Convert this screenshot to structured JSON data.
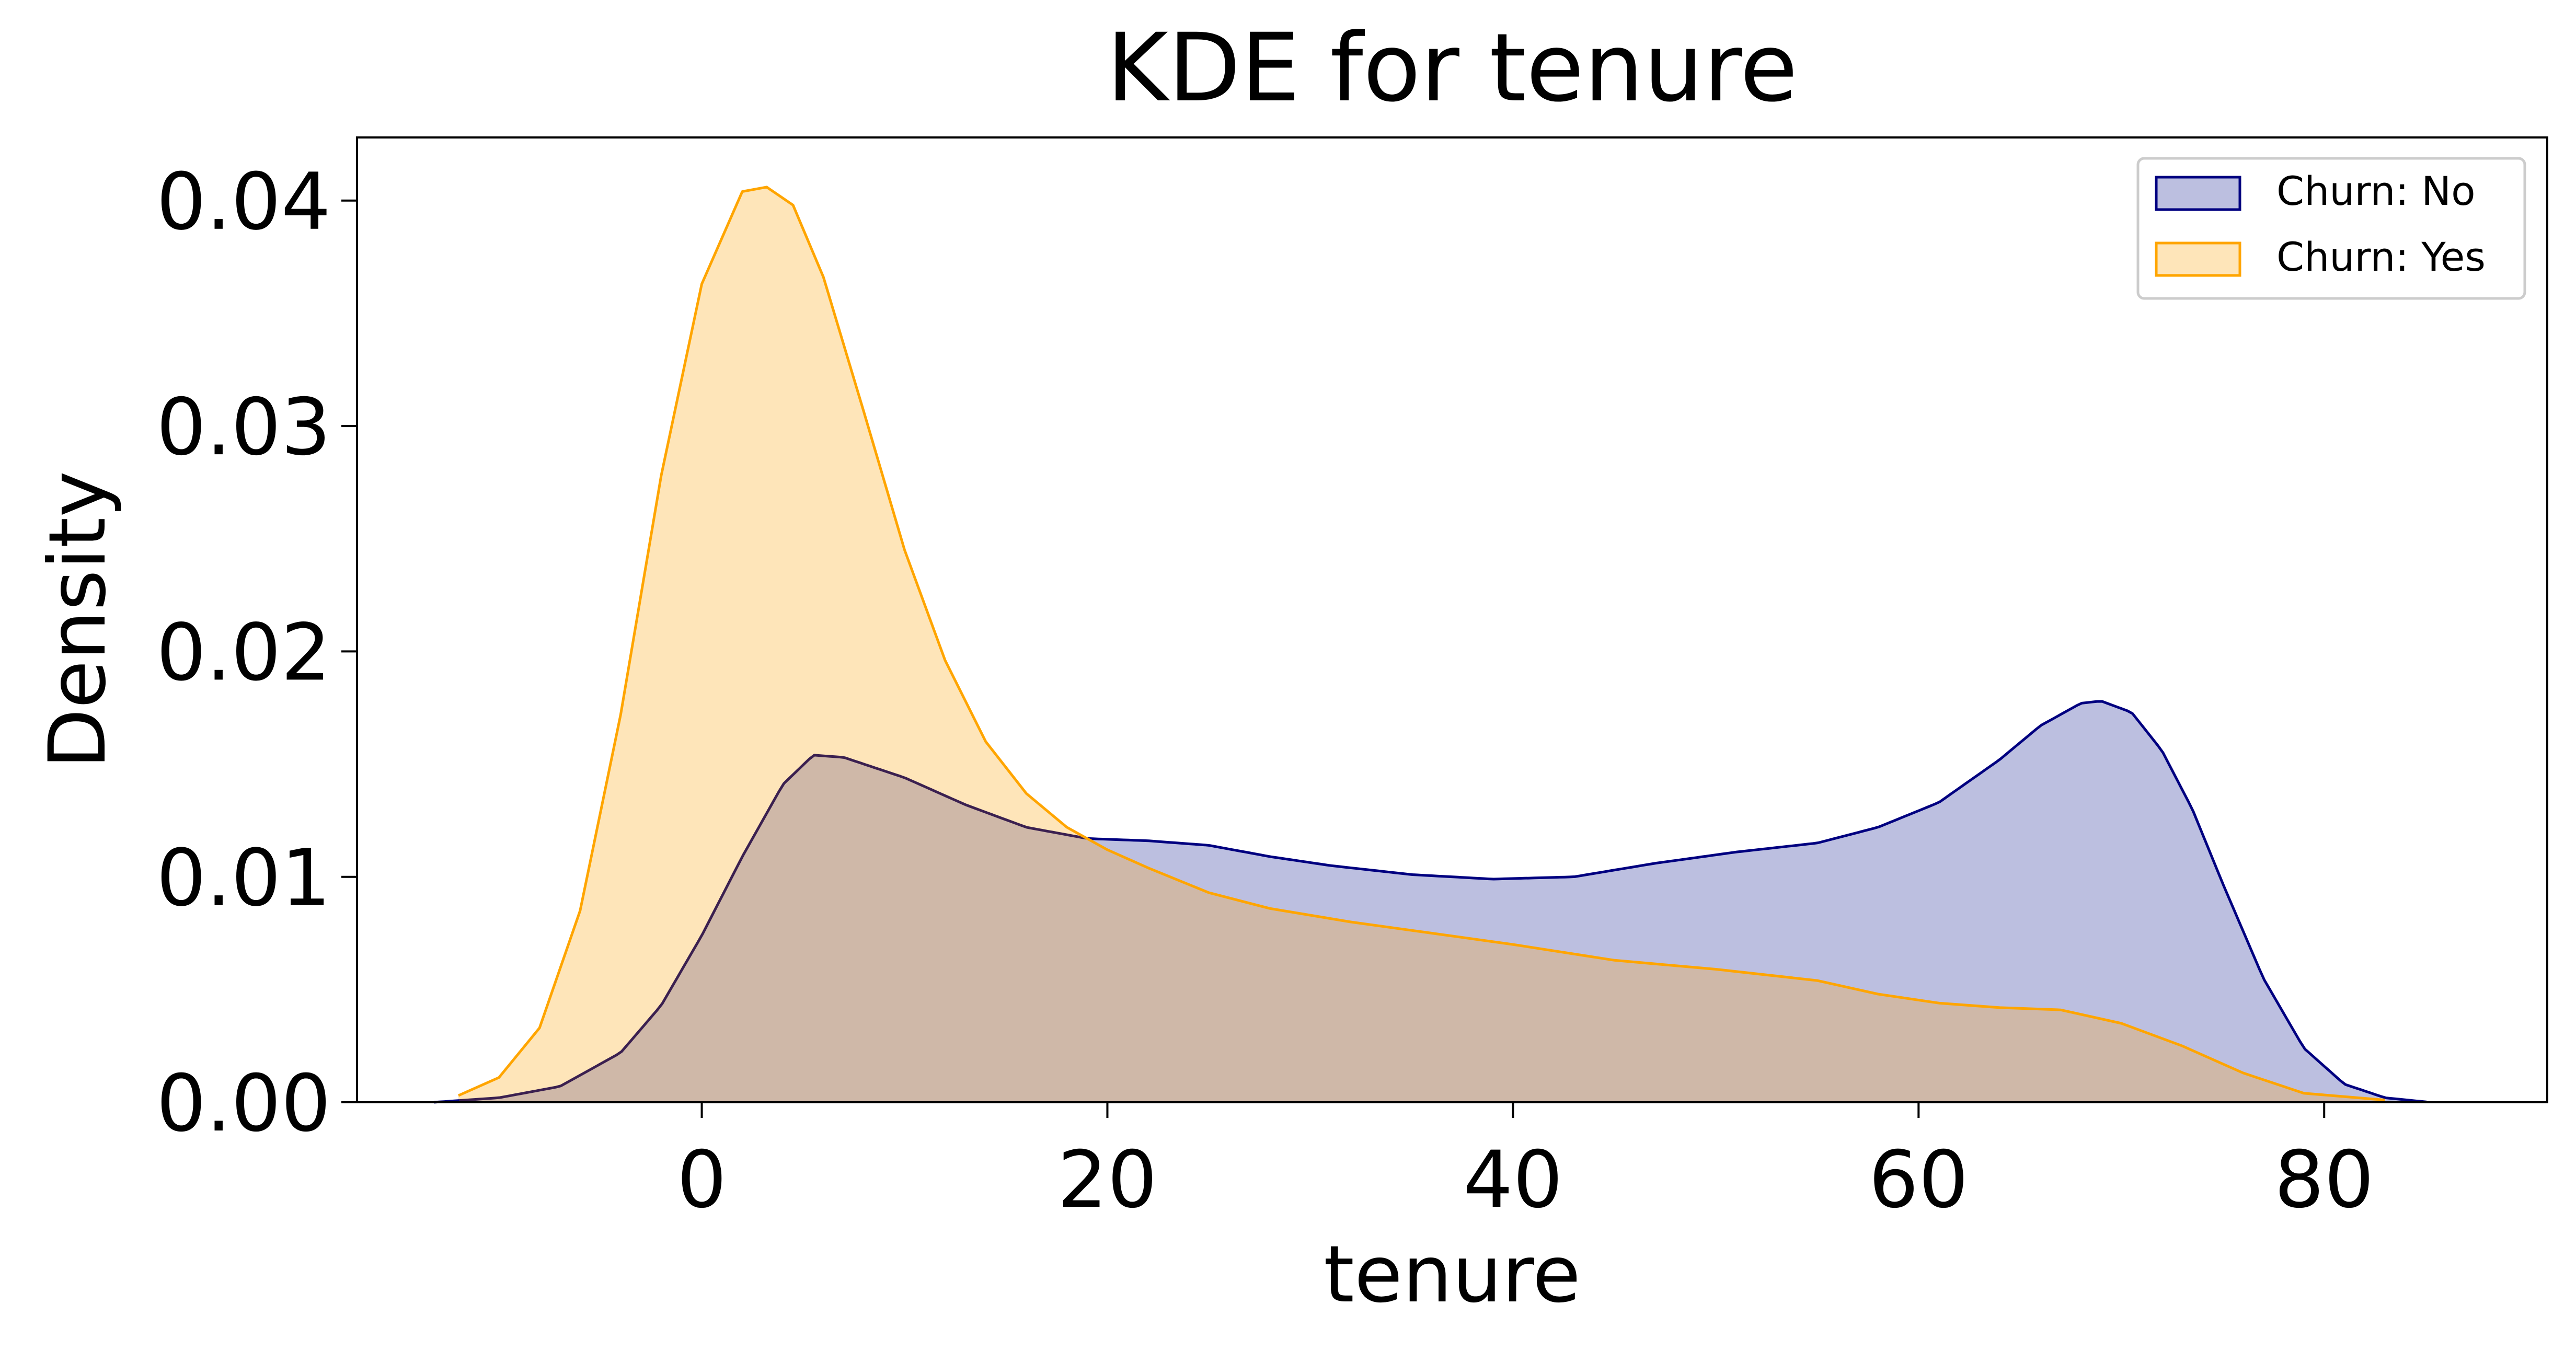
{
  "chart_data": {
    "type": "area",
    "title": "KDE for tenure",
    "xlabel": "tenure",
    "ylabel": "Density",
    "xlim": [
      -17,
      91
    ],
    "ylim": [
      0,
      0.0428
    ],
    "x_ticks": [
      0,
      20,
      40,
      60,
      80
    ],
    "y_ticks": [
      0,
      0.01,
      0.02,
      0.03,
      0.04
    ],
    "x_tick_labels": [
      "0",
      "20",
      "40",
      "60",
      "80"
    ],
    "y_tick_labels": [
      "0.00",
      "0.01",
      "0.02",
      "0.03",
      "0.04"
    ],
    "grid": false,
    "legend_position": "top-right",
    "series": [
      {
        "name": "Churn: No",
        "color": "#000080",
        "fill": "#bcbfe0",
        "points": [
          [
            -13.2,
            0.0
          ],
          [
            -10,
            0.0002
          ],
          [
            -7,
            0.0007
          ],
          [
            -4,
            0.0022
          ],
          [
            -2,
            0.0043
          ],
          [
            0,
            0.0074
          ],
          [
            2,
            0.0109
          ],
          [
            4,
            0.0141
          ],
          [
            5.5,
            0.0154
          ],
          [
            7,
            0.0153
          ],
          [
            10,
            0.0144
          ],
          [
            13,
            0.0132
          ],
          [
            16,
            0.0122
          ],
          [
            19,
            0.0117
          ],
          [
            22,
            0.0116
          ],
          [
            25,
            0.0114
          ],
          [
            28,
            0.0109
          ],
          [
            31,
            0.0105
          ],
          [
            35,
            0.0101
          ],
          [
            39,
            0.0099
          ],
          [
            43,
            0.01
          ],
          [
            47,
            0.0106
          ],
          [
            51,
            0.0111
          ],
          [
            55,
            0.0115
          ],
          [
            58,
            0.0122
          ],
          [
            61,
            0.0133
          ],
          [
            64,
            0.0152
          ],
          [
            66,
            0.0167
          ],
          [
            68,
            0.0177
          ],
          [
            69,
            0.0178
          ],
          [
            70.5,
            0.0173
          ],
          [
            72,
            0.0156
          ],
          [
            73.5,
            0.013
          ],
          [
            75,
            0.0097
          ],
          [
            77,
            0.0055
          ],
          [
            79,
            0.0024
          ],
          [
            81,
            0.0008
          ],
          [
            83,
            0.0002
          ],
          [
            85.2,
            0.0
          ]
        ]
      },
      {
        "name": "Churn: Yes",
        "color": "#ffa500",
        "fill": "#fee5b9",
        "points": [
          [
            -12,
            0.0003
          ],
          [
            -10,
            0.0011
          ],
          [
            -8,
            0.0033
          ],
          [
            -6,
            0.0085
          ],
          [
            -4,
            0.0172
          ],
          [
            -2,
            0.0278
          ],
          [
            0,
            0.0363
          ],
          [
            2,
            0.0404
          ],
          [
            3.2,
            0.0406
          ],
          [
            4.5,
            0.0398
          ],
          [
            6,
            0.0366
          ],
          [
            8,
            0.0306
          ],
          [
            10,
            0.0245
          ],
          [
            12,
            0.0196
          ],
          [
            14,
            0.016
          ],
          [
            16,
            0.0137
          ],
          [
            18,
            0.0122
          ],
          [
            20,
            0.0112
          ],
          [
            22,
            0.0104
          ],
          [
            25,
            0.0093
          ],
          [
            28,
            0.0086
          ],
          [
            32,
            0.008
          ],
          [
            36,
            0.0075
          ],
          [
            40,
            0.007
          ],
          [
            45,
            0.0063
          ],
          [
            50,
            0.0059
          ],
          [
            55,
            0.0054
          ],
          [
            58,
            0.0048
          ],
          [
            61,
            0.0044
          ],
          [
            64,
            0.0042
          ],
          [
            67,
            0.0041
          ],
          [
            70,
            0.0035
          ],
          [
            73,
            0.0025
          ],
          [
            76,
            0.0013
          ],
          [
            79,
            0.0004
          ],
          [
            83,
            0.0001
          ]
        ]
      }
    ],
    "overlap_fill": "#cfb8a8",
    "overlap_line": "#3b2050"
  }
}
